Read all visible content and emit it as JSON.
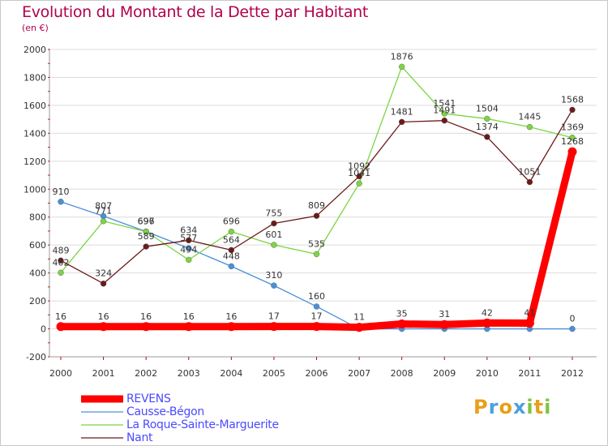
{
  "chart_data": {
    "type": "line",
    "title": "Evolution du Montant de la Dette par Habitant",
    "subtitle": "(en €)",
    "x": [
      "2000",
      "2001",
      "2002",
      "2003",
      "2004",
      "2005",
      "2006",
      "2007",
      "2008",
      "2009",
      "2010",
      "2011",
      "2012"
    ],
    "ylim": [
      -200,
      2000
    ],
    "yticks": [
      -200,
      0,
      200,
      400,
      600,
      800,
      1000,
      1200,
      1400,
      1600,
      1800,
      2000
    ],
    "grid": "horizontal",
    "legend_placement": "bottom-left",
    "series": [
      {
        "name": "REVENS",
        "color": "#ff0000",
        "values": [
          16,
          16,
          16,
          16,
          16,
          17,
          17,
          11,
          35,
          31,
          42,
          41,
          1268
        ],
        "labels": [
          "16",
          "16",
          "16",
          "16",
          "16",
          "17",
          "17",
          "11",
          "35",
          "31",
          "42",
          "41",
          ""
        ]
      },
      {
        "name": "Causse-Bégon",
        "color": "#4a90d9",
        "values": [
          910,
          807,
          697,
          577,
          448,
          310,
          160,
          0,
          0,
          0,
          0,
          0,
          0
        ],
        "labels": [
          "910",
          "807",
          "",
          "",
          "448",
          "310",
          "160",
          "",
          "",
          "",
          "",
          "",
          "0"
        ]
      },
      {
        "name": "La Roque-Sainte-Marguerite",
        "color": "#7dd444",
        "values": [
          402,
          771,
          696,
          494,
          696,
          601,
          535,
          1041,
          1876,
          1541,
          1504,
          1445,
          1369
        ],
        "labels": [
          "402",
          "771",
          "696",
          "494",
          "696",
          "601",
          "535",
          "1041",
          "1876",
          "1541",
          "1504",
          "1445",
          "1369"
        ]
      },
      {
        "name": "Nant",
        "color": "#6b1a1a",
        "values": [
          489,
          324,
          589,
          634,
          564,
          755,
          809,
          1092,
          1481,
          1491,
          1374,
          1051,
          1568
        ],
        "labels": [
          "489",
          "324",
          "589",
          "634",
          "564",
          "755",
          "809",
          "1092",
          "1481",
          "1491",
          "1374",
          "1051",
          "1568"
        ]
      }
    ],
    "extra_labels": [
      {
        "series": "Causse-Bégon",
        "index": 2,
        "text": "697"
      },
      {
        "series": "Causse-Bégon",
        "index": 3,
        "text": "577"
      },
      {
        "series": "REVENS",
        "index": 12,
        "text": "1268"
      }
    ]
  },
  "logo": {
    "letters": [
      "P",
      "r",
      "o",
      "x",
      "i",
      "t",
      "i"
    ],
    "colors": [
      "#e8a018",
      "#4aa0e0",
      "#e8a018",
      "#4aa0e0",
      "#7dc440",
      "#e8a018",
      "#7dc440"
    ]
  }
}
